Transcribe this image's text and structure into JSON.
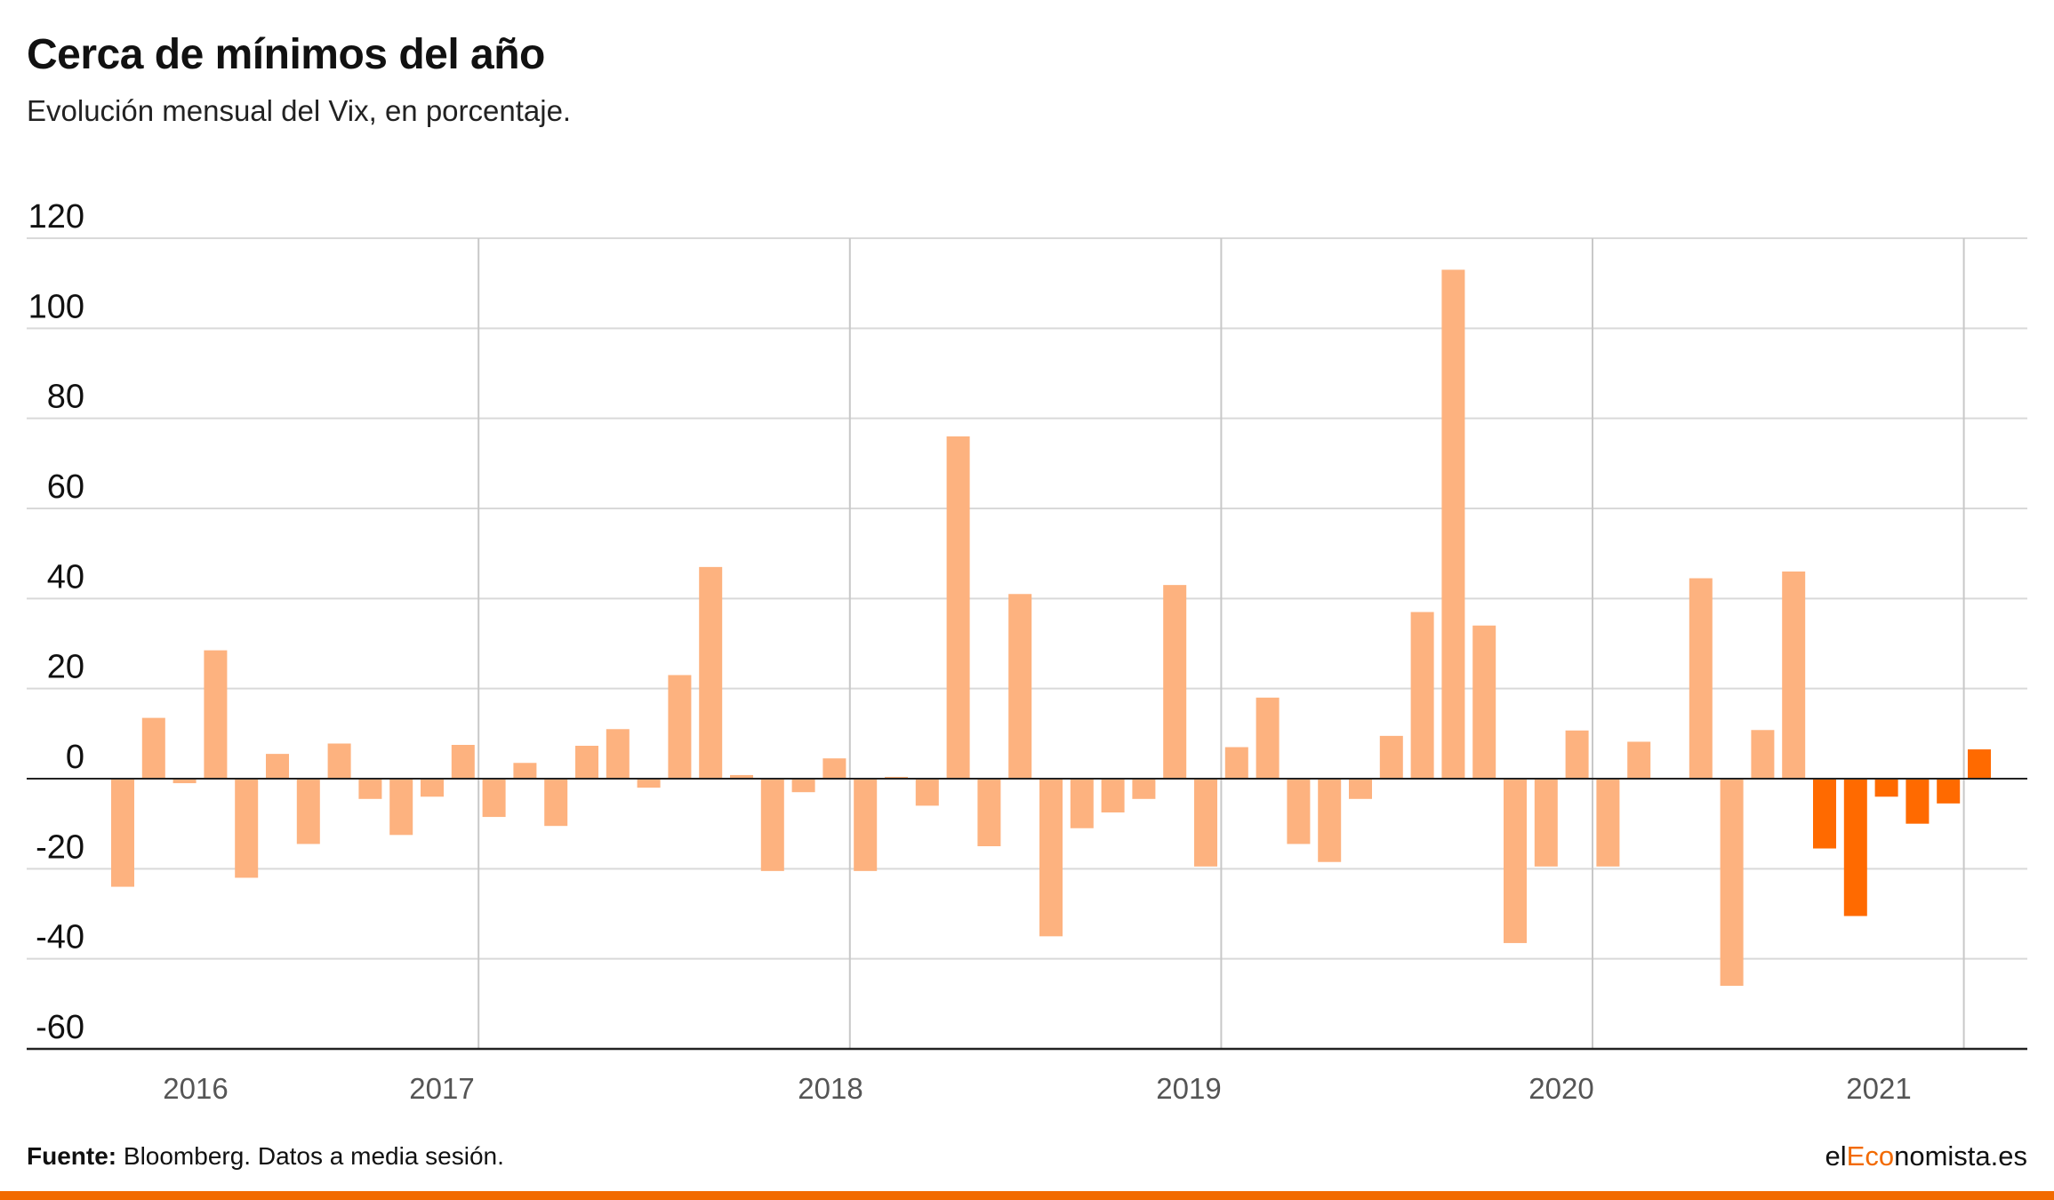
{
  "header": {
    "title": "Cerca de mínimos del año",
    "subtitle": "Evolución mensual del Vix, en porcentaje."
  },
  "footer": {
    "source_label": "Fuente:",
    "source_text": " Bloomberg. Datos a media sesión.",
    "brand_prefix": "el",
    "brand_accent": "Eco",
    "brand_suffix": "nomista.es"
  },
  "colors": {
    "past_bars": "#fdb27f",
    "current_year_bars": "#ff6a00",
    "brand_accent": "#f26a00",
    "grid": "#d9d9d9",
    "year_divider": "#c8c8c8",
    "axis": "#222222"
  },
  "chart_data": {
    "type": "bar",
    "title": "Cerca de mínimos del año",
    "subtitle": "Evolución mensual del Vix, en porcentaje.",
    "ylim": [
      -60,
      120
    ],
    "yticks": [
      "120",
      "100",
      "80",
      "60",
      "40",
      "20",
      "0",
      "-20",
      "-40",
      "-60"
    ],
    "grid": true,
    "year_labels": [
      "2016",
      "2017",
      "2018",
      "2019",
      "2020",
      "2021"
    ],
    "series": [
      {
        "values": [
          -24,
          13.5,
          -1,
          28.5,
          -22,
          5.5,
          -14.5,
          7.8,
          -4.5,
          -12.5,
          -4,
          7.5,
          -8.5,
          3.5,
          -10.5,
          7.3,
          11,
          -2,
          23,
          47,
          0.8,
          -20.5,
          -3,
          4.5,
          -20.5,
          0.4,
          -6,
          76,
          -15,
          41,
          -35,
          -11,
          -7.5,
          -4.5,
          43,
          -19.5,
          7,
          18,
          -14.5,
          -18.5,
          -4.5,
          9.5,
          37,
          113,
          34,
          -36.5,
          -19.5,
          10.7,
          -19.5,
          8.2,
          0.2,
          44.5,
          -46,
          10.8,
          46,
          -15.5,
          -30.5,
          -4,
          -10,
          -5.5,
          6.5
        ],
        "current_year_from_index": 55
      }
    ]
  }
}
